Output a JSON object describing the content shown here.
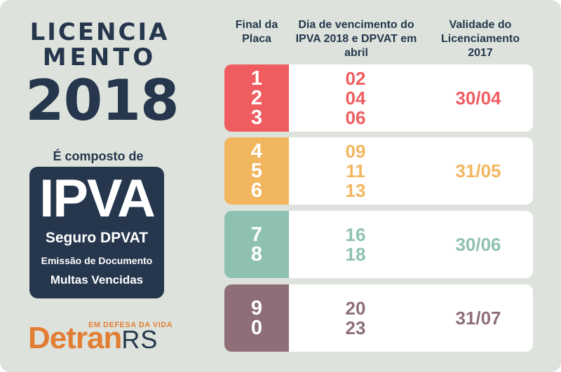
{
  "title": {
    "line1": "LICENCIA",
    "line2": "MENTO",
    "line3": "2018"
  },
  "composed_label": "É composto de",
  "ipva_box": {
    "big": "IPVA",
    "line1": "Seguro DPVAT",
    "line2": "Emissão de Documento",
    "line3": "Multas Vencidas"
  },
  "logo": {
    "tagline": "EM DEFESA DA VIDA",
    "main": "Detran",
    "suffix": "RS"
  },
  "headers": {
    "plate": "Final da Placa",
    "due": "Dia de vencimento do IPVA 2018 e DPVAT em abril",
    "validity": "Validade do Licenciamento 2017"
  },
  "rows": [
    {
      "plates": [
        "1",
        "2",
        "3"
      ],
      "days": [
        "02",
        "04",
        "06"
      ],
      "validity": "30/04",
      "color": "#ef5d60"
    },
    {
      "plates": [
        "4",
        "5",
        "6"
      ],
      "days": [
        "09",
        "11",
        "13"
      ],
      "validity": "31/05",
      "color": "#f2b65f"
    },
    {
      "plates": [
        "7",
        "8"
      ],
      "days": [
        "16",
        "18"
      ],
      "validity": "30/06",
      "color": "#8fc1b2"
    },
    {
      "plates": [
        "9",
        "0"
      ],
      "days": [
        "20",
        "23"
      ],
      "validity": "31/07",
      "color": "#8e6f78"
    }
  ],
  "colors": {
    "background": "#dde3dc",
    "navy": "#25364d",
    "orange": "#e27d34"
  }
}
